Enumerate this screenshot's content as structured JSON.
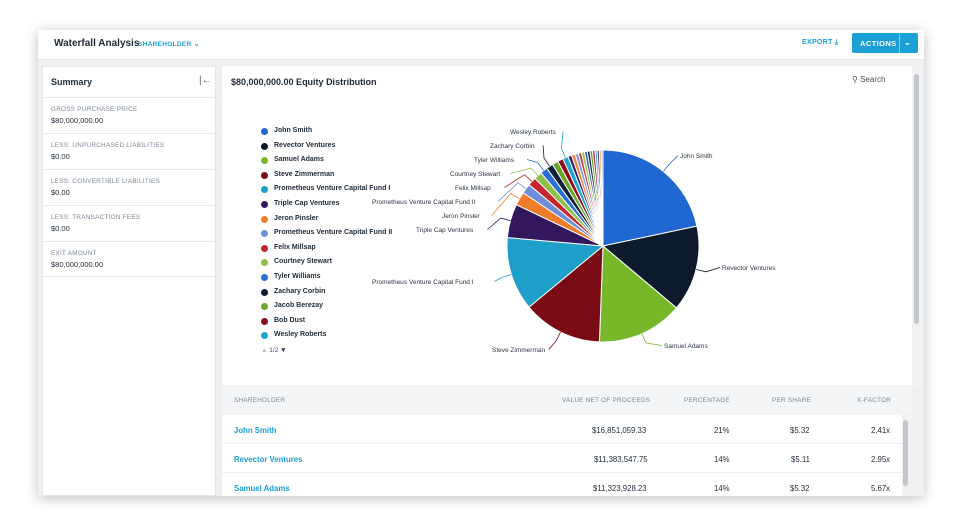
{
  "header": {
    "title": "Waterfall Analysis",
    "view_dropdown": "SHAREHOLDER",
    "export_label": "EXPORT",
    "actions_label": "ACTIONS"
  },
  "summary": {
    "title": "Summary",
    "items": [
      {
        "label": "GROSS PURCHASE PRICE",
        "value": "$80,000,000.00"
      },
      {
        "label": "LESS: UNPURCHASED LIABILITIES",
        "value": "$0.00"
      },
      {
        "label": "LESS: CONVERTIBLE LIABILITIES",
        "value": "$0.00"
      },
      {
        "label": "LESS: TRANSACTION FEES",
        "value": "$0.00"
      },
      {
        "label": "EXIT AMOUNT",
        "value": "$80,000,000.00"
      }
    ]
  },
  "chart": {
    "title": "$80,000,000.00 Equity Distribution",
    "search_label": "Search",
    "pager": {
      "current": "1",
      "total": "2"
    }
  },
  "chart_data": {
    "type": "pie",
    "title": "$80,000,000.00 Equity Distribution",
    "legend_position": "left",
    "series": [
      {
        "name": "John Smith",
        "value": 21,
        "color": "#2067d1"
      },
      {
        "name": "Revector Ventures",
        "value": 14,
        "color": "#0d1a2b"
      },
      {
        "name": "Samuel Adams",
        "value": 14,
        "color": "#76b82a"
      },
      {
        "name": "Steve Zimmerman",
        "value": 13,
        "color": "#7a0b14"
      },
      {
        "name": "Prometheus Venture Capital Fund I",
        "value": 12,
        "color": "#1e9fc9"
      },
      {
        "name": "Triple Cap Ventures",
        "value": 5.5,
        "color": "#33175c"
      },
      {
        "name": "Jeron Pinsler",
        "value": 2.2,
        "color": "#ee7d2a"
      },
      {
        "name": "Prometheus Venture Capital Fund II",
        "value": 1.6,
        "color": "#6e8fd8"
      },
      {
        "name": "Felix Millsap",
        "value": 1.4,
        "color": "#c5262c"
      },
      {
        "name": "Courtney Stewart",
        "value": 1.3,
        "color": "#8fc14a"
      },
      {
        "name": "Tyler Williams",
        "value": 1.2,
        "color": "#2a6fd6"
      },
      {
        "name": "Zachary Corbin",
        "value": 1.1,
        "color": "#0f1f33"
      },
      {
        "name": "Jacob Berezay",
        "value": 1.0,
        "color": "#6aa62b"
      },
      {
        "name": "Bob Dust",
        "value": 0.9,
        "color": "#8b0e1a"
      },
      {
        "name": "Wesley Roberts",
        "value": 0.9,
        "color": "#1fa6cf"
      },
      {
        "name": "",
        "value": 0.6,
        "color": "#3c1f6e"
      },
      {
        "name": "",
        "value": 0.6,
        "color": "#f08a3a"
      },
      {
        "name": "",
        "value": 0.55,
        "color": "#7e9be0"
      },
      {
        "name": "",
        "value": 0.5,
        "color": "#c93a3a"
      },
      {
        "name": "",
        "value": 0.5,
        "color": "#9cc95a"
      },
      {
        "name": "",
        "value": 0.45,
        "color": "#2c5fb8"
      },
      {
        "name": "",
        "value": 0.45,
        "color": "#1c2b40"
      },
      {
        "name": "",
        "value": 0.4,
        "color": "#5e9a2a"
      },
      {
        "name": "",
        "value": 0.4,
        "color": "#b02238"
      },
      {
        "name": "",
        "value": 0.35,
        "color": "#3aa8cc"
      },
      {
        "name": "",
        "value": 0.35,
        "color": "#56307a"
      },
      {
        "name": "",
        "value": 0.3,
        "color": "#e59940"
      },
      {
        "name": "",
        "value": 0.3,
        "color": "#a0b4e8"
      }
    ],
    "slice_labels": [
      "John Smith",
      "Revector Ventures",
      "Samuel Adams",
      "Steve Zimmerman",
      "Prometheus Venture Capital Fund I",
      "Triple Cap Ventures",
      "Jeron Pinsler",
      "Prometheus Venture Capital Fund II",
      "Felix Millsap",
      "Courtney Stewart",
      "Tyler Williams",
      "Zachary Corbin",
      "Wesley Roberts"
    ]
  },
  "legend": [
    {
      "label": "John Smith",
      "color": "#2067d1"
    },
    {
      "label": "Revector Ventures",
      "color": "#0d1a2b"
    },
    {
      "label": "Samuel Adams",
      "color": "#76b82a"
    },
    {
      "label": "Steve Zimmerman",
      "color": "#7a0b14"
    },
    {
      "label": "Prometheus Venture Capital Fund I",
      "color": "#1e9fc9"
    },
    {
      "label": "Triple Cap Ventures",
      "color": "#33175c"
    },
    {
      "label": "Jeron Pinsler",
      "color": "#ee7d2a"
    },
    {
      "label": "Prometheus Venture Capital Fund II",
      "color": "#6e8fd8"
    },
    {
      "label": "Felix Millsap",
      "color": "#c5262c"
    },
    {
      "label": "Courtney Stewart",
      "color": "#8fc14a"
    },
    {
      "label": "Tyler Williams",
      "color": "#2a6fd6"
    },
    {
      "label": "Zachary Corbin",
      "color": "#0f1f33"
    },
    {
      "label": "Jacob Berezay",
      "color": "#6aa62b"
    },
    {
      "label": "Bob Dust",
      "color": "#8b0e1a"
    },
    {
      "label": "Wesley Roberts",
      "color": "#1fa6cf"
    }
  ],
  "table": {
    "columns": [
      "SHAREHOLDER",
      "VALUE NET OF PROCEEDS",
      "PERCENTAGE",
      "PER SHARE",
      "X-FACTOR"
    ],
    "rows": [
      {
        "name": "John Smith",
        "value": "$16,851,059.33",
        "pct": "21%",
        "per_share": "$5.32",
        "xfactor": "2.41x"
      },
      {
        "name": "Revector Ventures",
        "value": "$11,383,547.75",
        "pct": "14%",
        "per_share": "$5.11",
        "xfactor": "2.95x"
      },
      {
        "name": "Samuel Adams",
        "value": "$11,323,928.23",
        "pct": "14%",
        "per_share": "$5.32",
        "xfactor": "5.67x"
      }
    ]
  }
}
